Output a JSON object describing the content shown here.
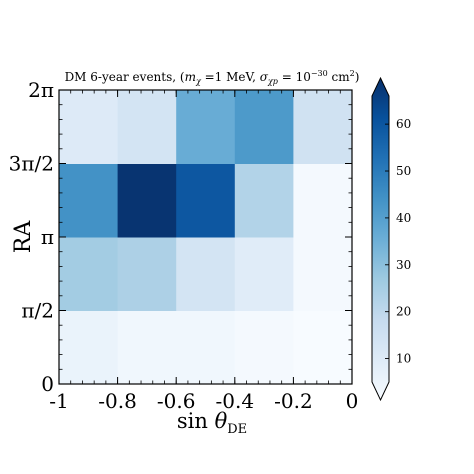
{
  "chart_data": {
    "type": "heatmap",
    "title_prefix": "DM 6-year events, (",
    "title_m_sym": "m",
    "title_m_sub": "χ",
    "title_m_val": " =1 MeV, ",
    "title_s_sym": "σ",
    "title_s_sub": "χp",
    "title_s_eq": " = 10",
    "title_s_exp": "−30",
    "title_s_unit": " cm",
    "title_s_unit_exp": "2",
    "title_suffix": ")",
    "xlabel_prefix": "sin ",
    "xlabel_symbol": "θ",
    "xlabel_sub": "DE",
    "ylabel": "RA",
    "xlim": [
      -1,
      0
    ],
    "ylim_ticks_rad": [
      0,
      1.5708,
      3.1416,
      4.7124,
      6.2832
    ],
    "x_ticks": [
      {
        "value": -1,
        "label": "-1"
      },
      {
        "value": -0.8,
        "label": "-0.8"
      },
      {
        "value": -0.6,
        "label": "-0.6"
      },
      {
        "value": -0.4,
        "label": "-0.4"
      },
      {
        "value": -0.2,
        "label": "-0.2"
      },
      {
        "value": 0,
        "label": "0"
      }
    ],
    "y_ticks": [
      {
        "value": 0,
        "label": "0"
      },
      {
        "value": 0.25,
        "label": "π/2"
      },
      {
        "value": 0.5,
        "label": "π"
      },
      {
        "value": 0.75,
        "label": "3π/2"
      },
      {
        "value": 1,
        "label": "2π"
      }
    ],
    "x_bin_edges": [
      -1,
      -0.8,
      -0.6,
      -0.4,
      -0.2,
      0
    ],
    "y_bin_labels": [
      "0 – π/2",
      "π/2 – π",
      "π – 3π/2",
      "3π/2 – 2π"
    ],
    "values": [
      [
        9,
        7,
        7,
        6,
        5
      ],
      [
        27,
        25,
        16,
        12,
        6
      ],
      [
        43,
        65,
        57,
        24,
        6
      ],
      [
        13,
        16,
        36,
        41,
        17
      ]
    ],
    "colorbar": {
      "min": 5,
      "max": 66,
      "extend": "both",
      "ticks": [
        10,
        20,
        30,
        40,
        50,
        60
      ],
      "tick_labels": [
        "10",
        "20",
        "30",
        "40",
        "50",
        "60"
      ],
      "colormap": "Blues",
      "colors": [
        "#f7fbff",
        "#deebf7",
        "#c6dbef",
        "#9ecae1",
        "#6baed6",
        "#4292c6",
        "#2171b5",
        "#08519c",
        "#08306b"
      ]
    }
  }
}
